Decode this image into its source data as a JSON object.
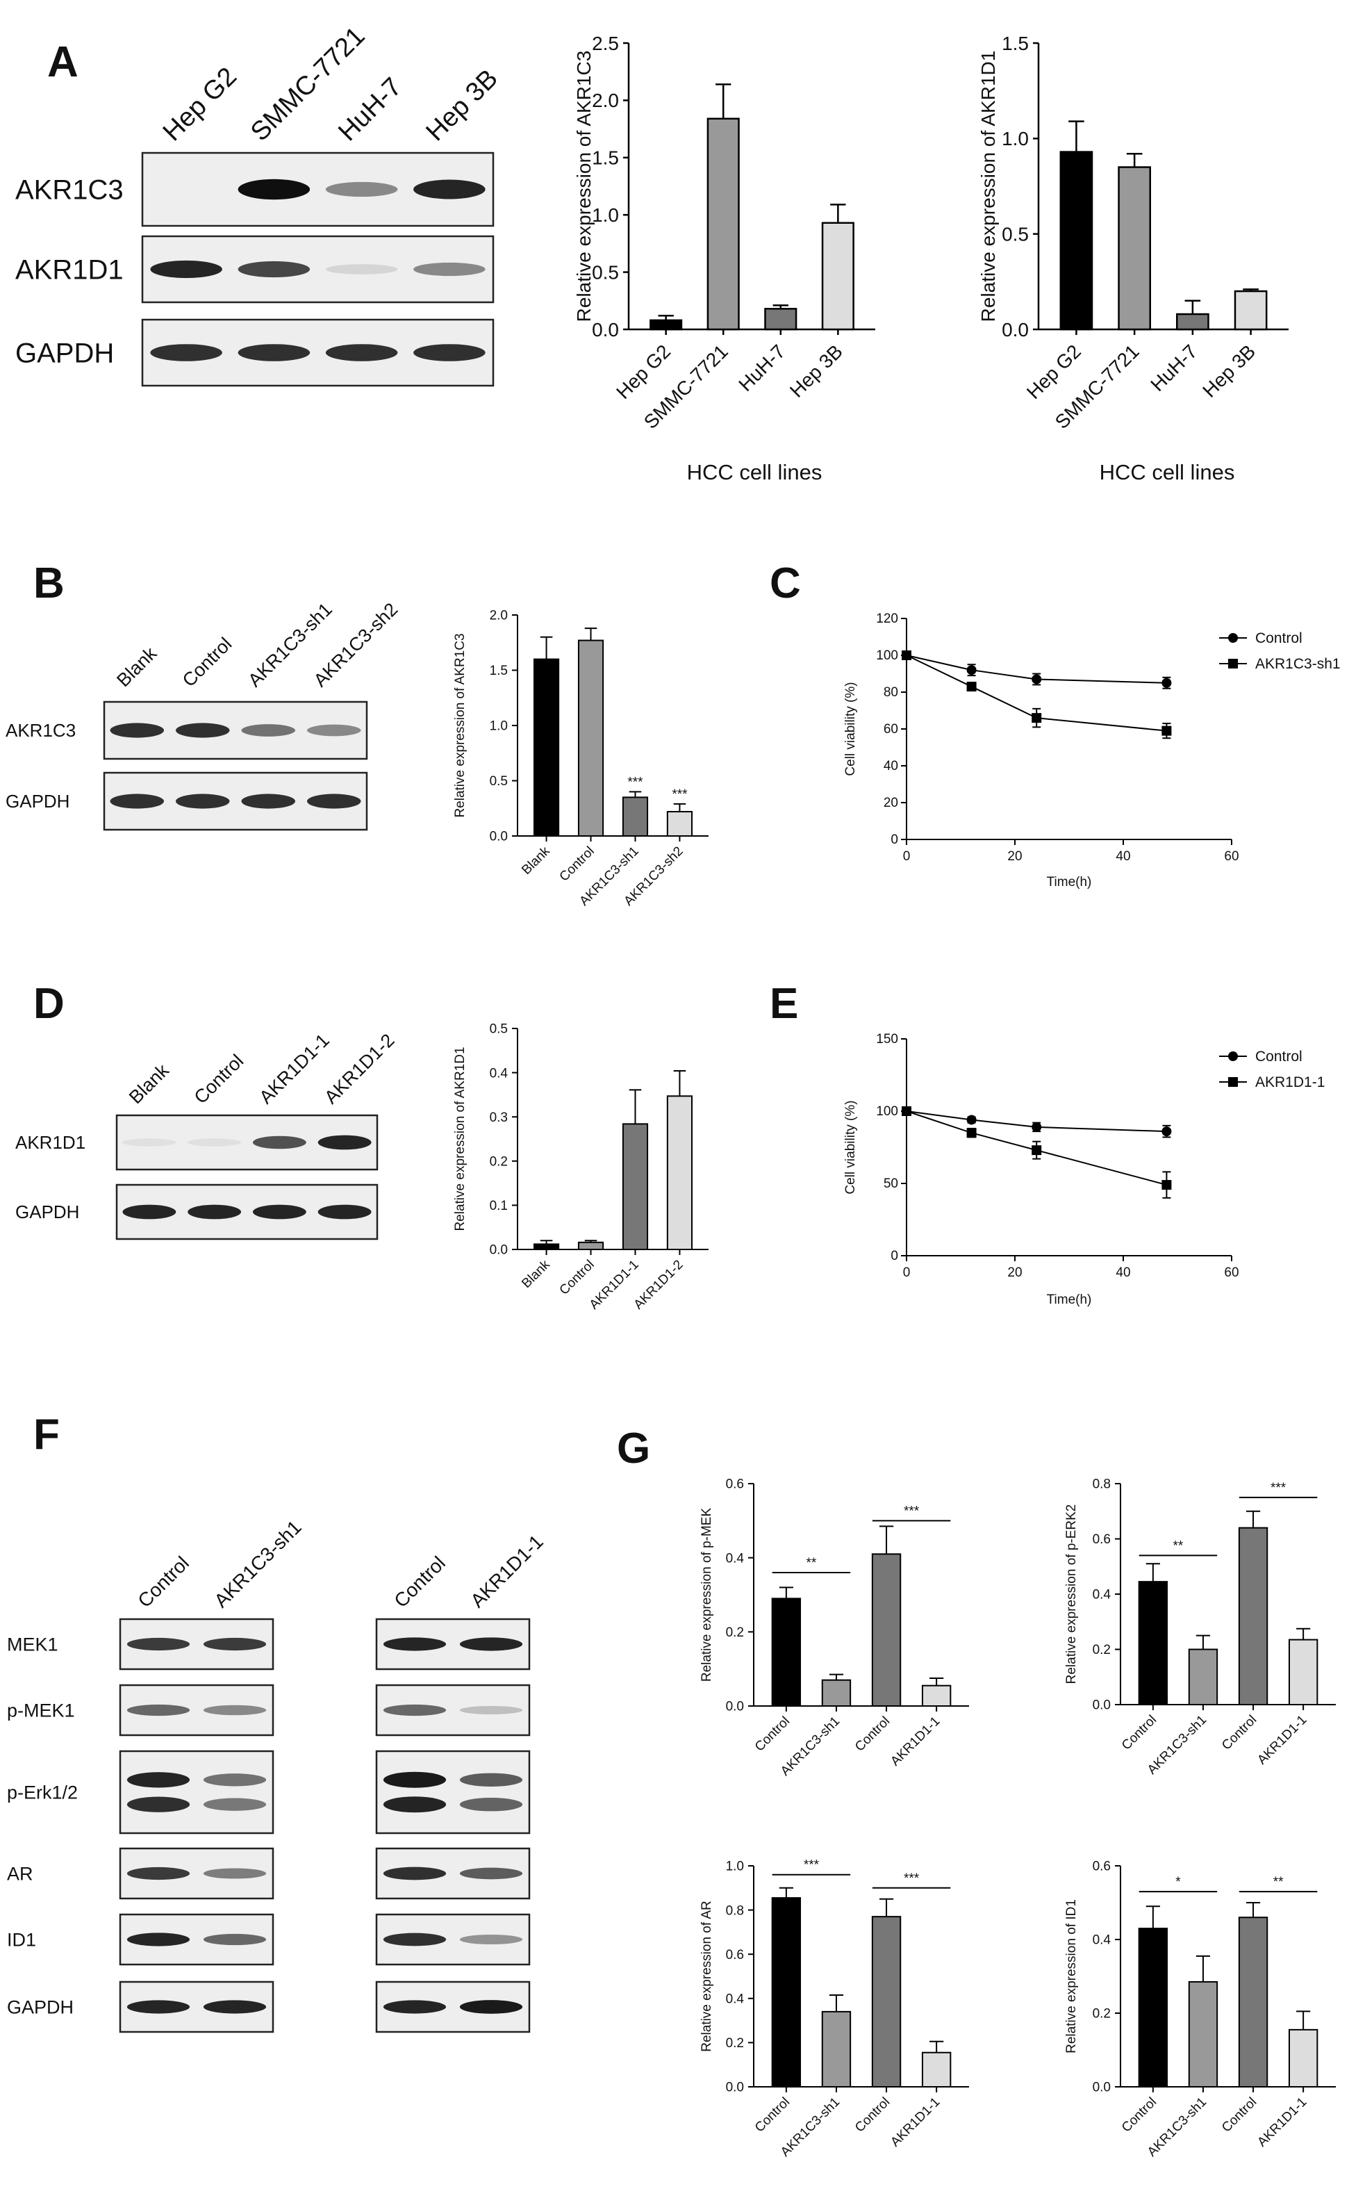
{
  "panels": {
    "A": "A",
    "B": "B",
    "C": "C",
    "D": "D",
    "E": "E",
    "F": "F",
    "G": "G"
  },
  "blot_a": {
    "lanes": [
      "Hep G2",
      "SMMC-7721",
      "HuH-7",
      "Hep 3B"
    ],
    "rows": [
      "AKR1C3",
      "AKR1D1",
      "GAPDH"
    ],
    "intensities": [
      [
        0.0,
        1.0,
        0.45,
        0.9
      ],
      [
        0.9,
        0.75,
        0.1,
        0.45
      ],
      [
        0.85,
        0.85,
        0.85,
        0.85
      ]
    ]
  },
  "blot_b": {
    "lanes": [
      "Blank",
      "Control",
      "AKR1C3-sh1",
      "AKR1C3-sh2"
    ],
    "rows": [
      "AKR1C3",
      "GAPDH"
    ],
    "intensities": [
      [
        0.85,
        0.85,
        0.55,
        0.45
      ],
      [
        0.85,
        0.85,
        0.85,
        0.85
      ]
    ]
  },
  "blot_d": {
    "lanes": [
      "Blank",
      "Control",
      "AKR1D1-1",
      "AKR1D1-2"
    ],
    "rows": [
      "AKR1D1",
      "GAPDH"
    ],
    "intensities": [
      [
        0.05,
        0.05,
        0.7,
        0.9
      ],
      [
        0.9,
        0.9,
        0.9,
        0.9
      ]
    ]
  },
  "blot_f": {
    "rows": [
      "MEK1",
      "p-MEK1",
      "p-Erk1/2",
      "AR",
      "ID1",
      "GAPDH"
    ],
    "left": {
      "lanes": [
        "Control",
        "AKR1C3-sh1"
      ],
      "intensities": [
        [
          0.8,
          0.8
        ],
        [
          0.6,
          0.45
        ],
        [
          0.9,
          0.55
        ],
        [
          0.8,
          0.5
        ],
        [
          0.9,
          0.6
        ],
        [
          0.9,
          0.9
        ]
      ]
    },
    "right": {
      "lanes": [
        "Control",
        "AKR1D1-1"
      ],
      "intensities": [
        [
          0.9,
          0.9
        ],
        [
          0.6,
          0.2
        ],
        [
          0.95,
          0.65
        ],
        [
          0.85,
          0.65
        ],
        [
          0.85,
          0.4
        ],
        [
          0.9,
          0.95
        ]
      ]
    }
  },
  "chart_data": [
    {
      "id": "A1",
      "type": "bar",
      "categories": [
        "Hep G2",
        "SMMC-7721",
        "HuH-7",
        "Hep 3B"
      ],
      "values": [
        0.08,
        1.84,
        0.18,
        0.93
      ],
      "errors": [
        0.04,
        0.3,
        0.03,
        0.16
      ],
      "xlabel": "HCC cell lines",
      "ylabel": "Relative expression of AKR1C3",
      "ylim": [
        0,
        2.5
      ],
      "yticks": [
        "0.0",
        "0.5",
        "1.0",
        "1.5",
        "2.0",
        "2.5"
      ],
      "colors": [
        "#000000",
        "#999999",
        "#777777",
        "#dddddd"
      ]
    },
    {
      "id": "A2",
      "type": "bar",
      "categories": [
        "Hep G2",
        "SMMC-7721",
        "HuH-7",
        "Hep 3B"
      ],
      "values": [
        0.93,
        0.85,
        0.08,
        0.2
      ],
      "errors": [
        0.16,
        0.07,
        0.07,
        0.01
      ],
      "xlabel": "HCC cell lines",
      "ylabel": "Relative expression of AKR1D1",
      "ylim": [
        0,
        1.5
      ],
      "yticks": [
        "0.0",
        "0.5",
        "1.0",
        "1.5"
      ],
      "colors": [
        "#000000",
        "#999999",
        "#777777",
        "#dddddd"
      ]
    },
    {
      "id": "B",
      "type": "bar",
      "categories": [
        "Blank",
        "Control",
        "AKR1C3-sh1",
        "AKR1C3-sh2"
      ],
      "values": [
        1.6,
        1.77,
        0.35,
        0.22
      ],
      "errors": [
        0.2,
        0.11,
        0.05,
        0.07
      ],
      "annotations": [
        "",
        "",
        "***",
        "***"
      ],
      "xlabel": "",
      "ylabel": "Relative expression of AKR1C3",
      "ylim": [
        0,
        2.0
      ],
      "yticks": [
        "0.0",
        "0.5",
        "1.0",
        "1.5",
        "2.0"
      ],
      "colors": [
        "#000000",
        "#999999",
        "#777777",
        "#dddddd"
      ]
    },
    {
      "id": "C",
      "type": "line",
      "xlabel": "Time(h)",
      "ylabel": "Cell viability (%)",
      "xlim": [
        0,
        60
      ],
      "xticks": [
        "0",
        "20",
        "40",
        "60"
      ],
      "ylim": [
        0,
        120
      ],
      "yticks": [
        "0",
        "20",
        "40",
        "60",
        "80",
        "100",
        "120"
      ],
      "legend": "top-right",
      "series": [
        {
          "name": "Control",
          "marker": "circle",
          "x": [
            0,
            12,
            24,
            48
          ],
          "y": [
            100,
            92,
            87,
            85
          ],
          "err": [
            2,
            3,
            3,
            3
          ]
        },
        {
          "name": "AKR1C3-sh1",
          "marker": "square",
          "x": [
            0,
            12,
            24,
            48
          ],
          "y": [
            100,
            83,
            66,
            59
          ],
          "err": [
            2,
            2,
            5,
            4
          ]
        }
      ]
    },
    {
      "id": "D",
      "type": "bar",
      "categories": [
        "Blank",
        "Control",
        "AKR1D1-1",
        "AKR1D1-2"
      ],
      "values": [
        0.012,
        0.016,
        0.284,
        0.347
      ],
      "errors": [
        0.008,
        0.004,
        0.077,
        0.057
      ],
      "xlabel": "",
      "ylabel": "Relative expression of AKR1D1",
      "ylim": [
        0,
        0.5
      ],
      "yticks": [
        "0.0",
        "0.1",
        "0.2",
        "0.3",
        "0.4",
        "0.5"
      ],
      "colors": [
        "#000000",
        "#999999",
        "#777777",
        "#dddddd"
      ]
    },
    {
      "id": "E",
      "type": "line",
      "xlabel": "Time(h)",
      "ylabel": "Cell viability (%)",
      "xlim": [
        0,
        60
      ],
      "xticks": [
        "0",
        "20",
        "40",
        "60"
      ],
      "ylim": [
        0,
        150
      ],
      "yticks": [
        "0",
        "50",
        "100",
        "150"
      ],
      "legend": "top-right",
      "series": [
        {
          "name": "Control",
          "marker": "circle",
          "x": [
            0,
            12,
            24,
            48
          ],
          "y": [
            100,
            94,
            89,
            86
          ],
          "err": [
            2,
            2,
            3,
            4
          ]
        },
        {
          "name": "AKR1D1-1",
          "marker": "square",
          "x": [
            0,
            12,
            24,
            48
          ],
          "y": [
            100,
            85,
            73,
            49
          ],
          "err": [
            2,
            3,
            6,
            9
          ]
        }
      ]
    },
    {
      "id": "G1",
      "type": "bar",
      "categories": [
        "Control",
        "AKR1C3-sh1",
        "Control",
        "AKR1D1-1"
      ],
      "values": [
        0.29,
        0.07,
        0.41,
        0.055
      ],
      "errors": [
        0.03,
        0.015,
        0.075,
        0.02
      ],
      "brackets": [
        {
          "from": 0,
          "to": 1,
          "label": "**",
          "y": 0.36
        },
        {
          "from": 2,
          "to": 3,
          "label": "***",
          "y": 0.5
        }
      ],
      "xlabel": "",
      "ylabel": "Relative expression of p-MEK",
      "ylim": [
        0,
        0.6
      ],
      "yticks": [
        "0.0",
        "0.2",
        "0.4",
        "0.6"
      ],
      "colors": [
        "#000000",
        "#999999",
        "#777777",
        "#dddddd"
      ]
    },
    {
      "id": "G2",
      "type": "bar",
      "categories": [
        "Control",
        "AKR1C3-sh1",
        "Control",
        "AKR1D1-1"
      ],
      "values": [
        0.445,
        0.2,
        0.64,
        0.235
      ],
      "errors": [
        0.065,
        0.05,
        0.06,
        0.04
      ],
      "brackets": [
        {
          "from": 0,
          "to": 1,
          "label": "**",
          "y": 0.54
        },
        {
          "from": 2,
          "to": 3,
          "label": "***",
          "y": 0.75
        }
      ],
      "xlabel": "",
      "ylabel": "Relative expression of p-ERK2",
      "ylim": [
        0,
        0.8
      ],
      "yticks": [
        "0.0",
        "0.2",
        "0.4",
        "0.6",
        "0.8"
      ],
      "colors": [
        "#000000",
        "#999999",
        "#777777",
        "#dddddd"
      ]
    },
    {
      "id": "G3",
      "type": "bar",
      "categories": [
        "Control",
        "AKR1C3-sh1",
        "Control",
        "AKR1D1-1"
      ],
      "values": [
        0.855,
        0.34,
        0.77,
        0.155
      ],
      "errors": [
        0.045,
        0.075,
        0.08,
        0.05
      ],
      "brackets": [
        {
          "from": 0,
          "to": 1,
          "label": "***",
          "y": 0.96
        },
        {
          "from": 2,
          "to": 3,
          "label": "***",
          "y": 0.9
        }
      ],
      "xlabel": "",
      "ylabel": "Relative expression of AR",
      "ylim": [
        0,
        1.0
      ],
      "yticks": [
        "0.0",
        "0.2",
        "0.4",
        "0.6",
        "0.8",
        "1.0"
      ],
      "colors": [
        "#000000",
        "#999999",
        "#777777",
        "#dddddd"
      ]
    },
    {
      "id": "G4",
      "type": "bar",
      "categories": [
        "Control",
        "AKR1C3-sh1",
        "Control",
        "AKR1D1-1"
      ],
      "values": [
        0.43,
        0.285,
        0.46,
        0.155
      ],
      "errors": [
        0.06,
        0.07,
        0.04,
        0.05
      ],
      "brackets": [
        {
          "from": 0,
          "to": 1,
          "label": "*",
          "y": 0.53
        },
        {
          "from": 2,
          "to": 3,
          "label": "**",
          "y": 0.53
        }
      ],
      "xlabel": "",
      "ylabel": "Relative expression of ID1",
      "ylim": [
        0,
        0.6
      ],
      "yticks": [
        "0.0",
        "0.2",
        "0.4",
        "0.6"
      ],
      "colors": [
        "#000000",
        "#999999",
        "#777777",
        "#dddddd"
      ]
    }
  ]
}
